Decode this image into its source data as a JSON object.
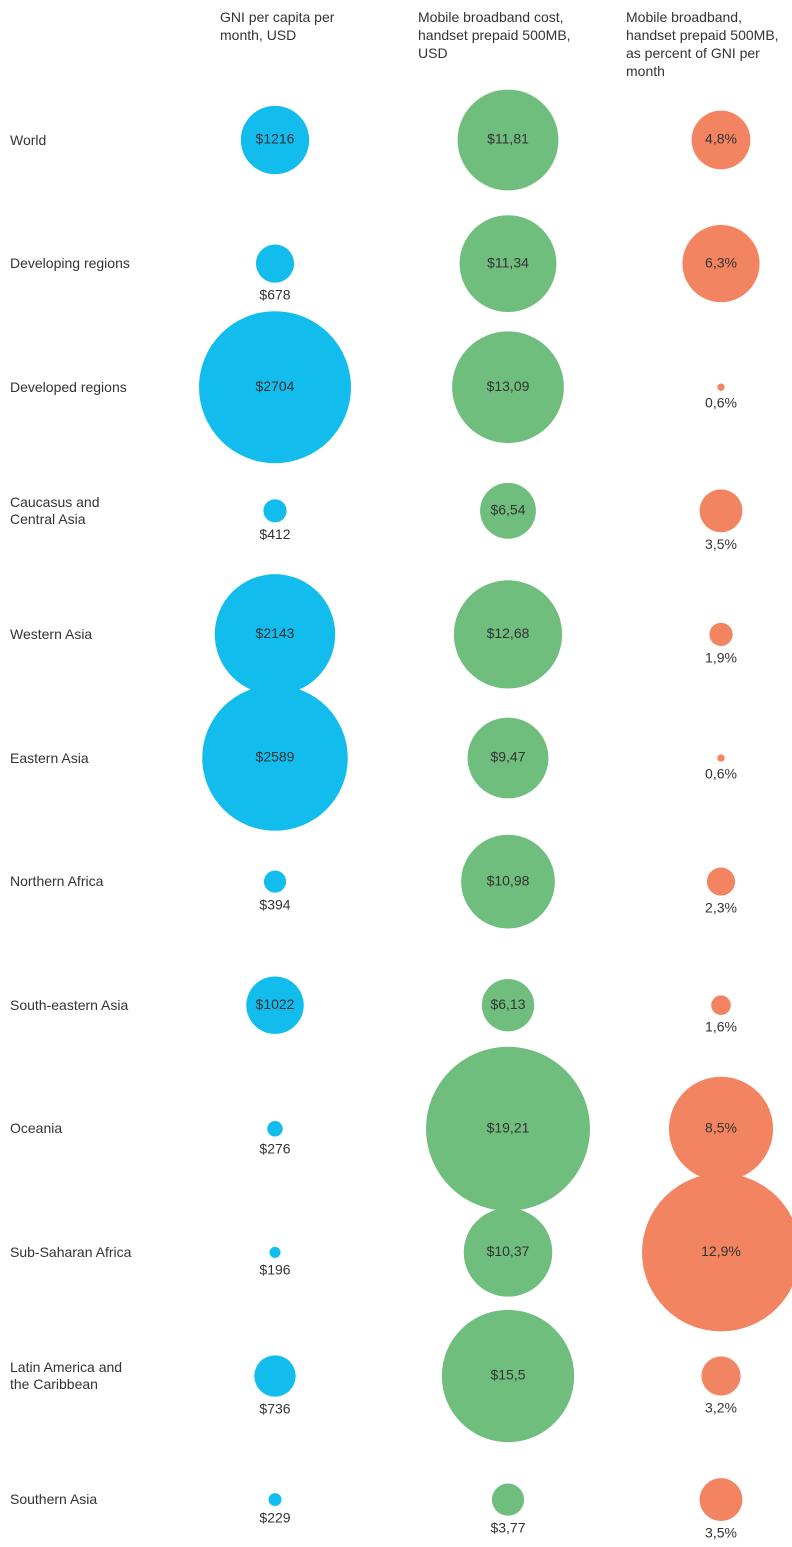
{
  "chart_data": {
    "type": "bubble",
    "categories": [
      "World",
      "Developing regions",
      "Developed regions",
      "Caucasus and Central Asia",
      "Western Asia",
      "Eastern Asia",
      "Northern Africa",
      "South-eastern Asia",
      "Oceania",
      "Sub-Saharan Africa",
      "Latin America and the Caribbean",
      "Southern Asia"
    ],
    "series": [
      {
        "name": "GNI per capita per month, USD",
        "color": "#12bdee",
        "values": [
          1216,
          678,
          2704,
          412,
          2143,
          2589,
          394,
          1022,
          276,
          196,
          736,
          229
        ],
        "value_labels": [
          "$1216",
          "$678",
          "$2704",
          "$412",
          "$2143",
          "$2589",
          "$394",
          "$1022",
          "$276",
          "$196",
          "$736",
          "$229"
        ]
      },
      {
        "name": "Mobile broadband cost, handset prepaid 500MB, USD",
        "color": "#6fbe7d",
        "values": [
          11.81,
          11.34,
          13.09,
          6.54,
          12.68,
          9.47,
          10.98,
          6.13,
          19.21,
          10.37,
          15.5,
          3.77
        ],
        "value_labels": [
          "$11,81",
          "$11,34",
          "$13,09",
          "$6,54",
          "$12,68",
          "$9,47",
          "$10,98",
          "$6,13",
          "$19,21",
          "$10,37",
          "$15,5",
          "$3,77"
        ]
      },
      {
        "name": "Mobile broadband, handset prepaid 500MB, as percent of GNI per month",
        "color": "#f28462",
        "values": [
          4.8,
          6.3,
          0.6,
          3.5,
          1.9,
          0.6,
          2.3,
          1.6,
          8.5,
          12.9,
          3.2,
          3.5
        ],
        "value_labels": [
          "4,8%",
          "6,3%",
          "0,6%",
          "3,5%",
          "1,9%",
          "0,6%",
          "2,3%",
          "1,6%",
          "8,5%",
          "12,9%",
          "3,2%",
          "3,5%"
        ]
      }
    ]
  }
}
